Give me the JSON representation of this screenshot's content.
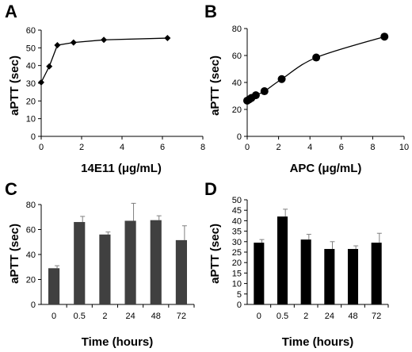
{
  "chart_data": [
    {
      "panel": "A",
      "type": "line",
      "xlabel": "14E11 (μg/mL)",
      "ylabel": "aPTT (sec)",
      "xlim": [
        0,
        8
      ],
      "ylim": [
        0,
        60
      ],
      "xticks": [
        0,
        2,
        4,
        6,
        8
      ],
      "yticks": [
        0,
        10,
        20,
        30,
        40,
        50,
        60
      ],
      "marker": "diamond",
      "x": [
        0,
        0.4,
        0.8,
        1.6,
        3.1,
        6.25
      ],
      "y": [
        30.5,
        39.5,
        51.5,
        53,
        54.5,
        55.5
      ]
    },
    {
      "panel": "B",
      "type": "line",
      "xlabel": "APC (μg/mL)",
      "ylabel": "aPTT (sec)",
      "xlim": [
        0,
        10
      ],
      "ylim": [
        0,
        80
      ],
      "xticks": [
        0,
        2,
        4,
        6,
        8,
        10
      ],
      "yticks": [
        0,
        20,
        40,
        60,
        80
      ],
      "marker": "circle",
      "x": [
        0,
        0.14,
        0.27,
        0.55,
        1.1,
        2.2,
        4.4,
        8.75
      ],
      "y": [
        26.5,
        27.5,
        28.5,
        30.5,
        33.5,
        42.5,
        58.5,
        74
      ]
    },
    {
      "panel": "C",
      "type": "bar",
      "xlabel": "Time (hours)",
      "ylabel": "aPTT (sec)",
      "ylim": [
        0,
        80
      ],
      "yticks": [
        0,
        20,
        40,
        60,
        80
      ],
      "bar_color": "#404040",
      "categories": [
        "0",
        "0.5",
        "2",
        "24",
        "48",
        "72"
      ],
      "values": [
        29,
        66,
        56,
        67,
        67.5,
        51.5
      ],
      "errors": [
        2,
        4.5,
        2,
        14,
        3.5,
        11.5
      ]
    },
    {
      "panel": "D",
      "type": "bar",
      "xlabel": "Time (hours)",
      "ylabel": "aPTT (sec)",
      "ylim": [
        0,
        50
      ],
      "yticks": [
        0,
        5,
        10,
        15,
        20,
        25,
        30,
        35,
        40,
        45,
        50
      ],
      "bar_color": "#000000",
      "categories": [
        "0",
        "0.5",
        "2",
        "24",
        "48",
        "72"
      ],
      "values": [
        29.5,
        42,
        31,
        26.5,
        26.5,
        29.5
      ],
      "errors": [
        1.5,
        3.5,
        2.5,
        3.5,
        1.5,
        4.5
      ]
    }
  ]
}
